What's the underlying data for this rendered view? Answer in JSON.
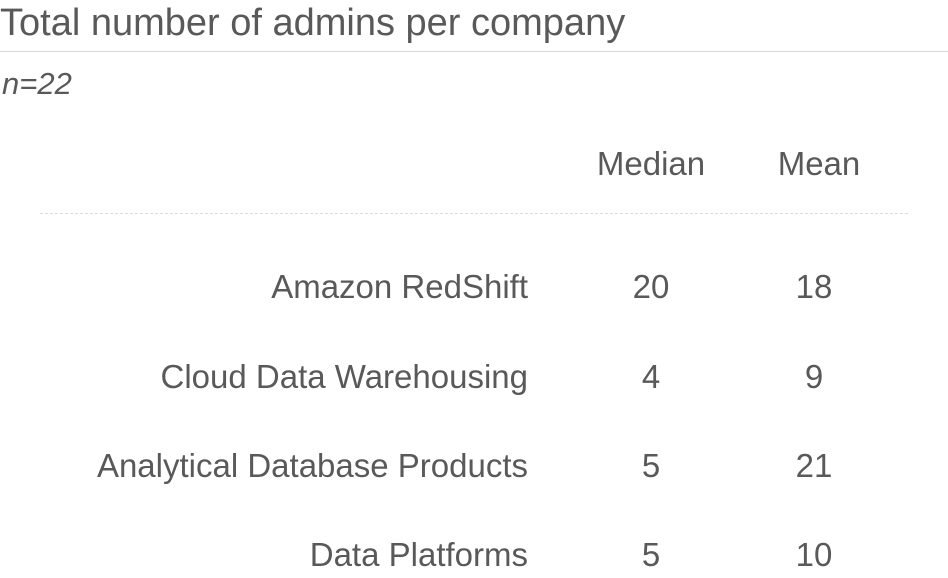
{
  "title": "Total number of admins per company",
  "subtitle": "n=22",
  "chart_data": {
    "type": "table",
    "columns": [
      "Median",
      "Mean"
    ],
    "rows": [
      {
        "label": "Amazon RedShift",
        "median": 20,
        "mean": 18
      },
      {
        "label": "Cloud Data Warehousing",
        "median": 4,
        "mean": 9
      },
      {
        "label": "Analytical Database Products",
        "median": 5,
        "mean": 21
      },
      {
        "label": "Data Platforms",
        "median": 5,
        "mean": 10
      }
    ]
  }
}
